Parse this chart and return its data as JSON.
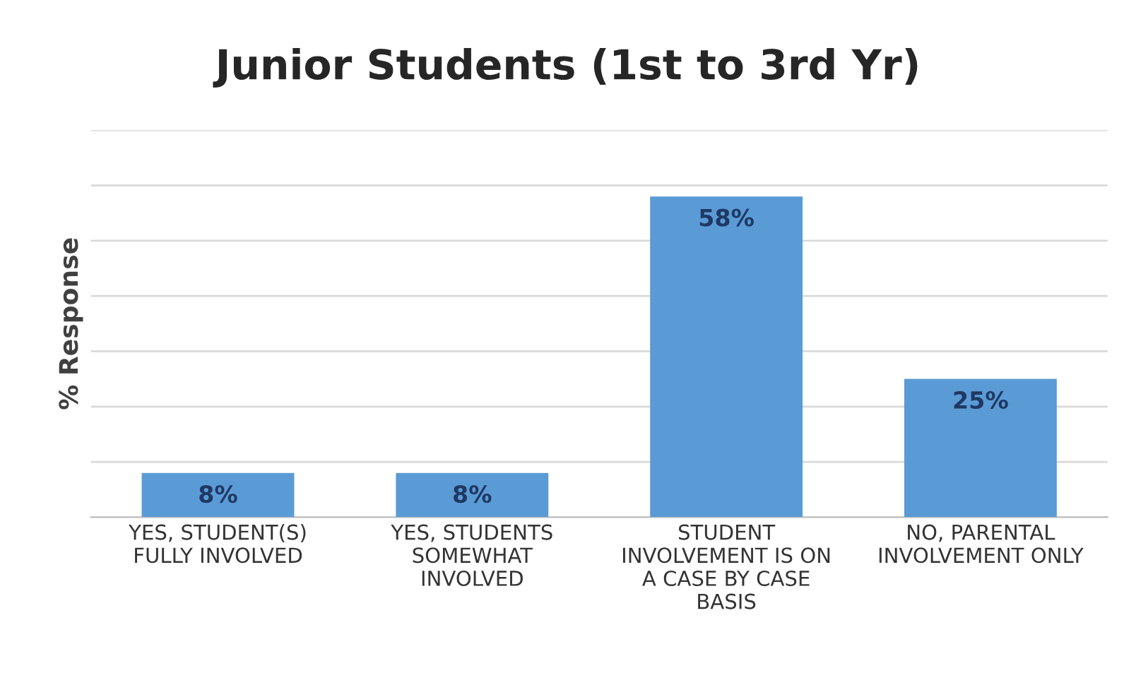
{
  "chart_data": {
    "type": "bar",
    "title": "Junior Students (1st to 3rd Yr)",
    "ylabel": "% Response",
    "categories": [
      "YES, STUDENT(S)\nFULLY INVOLVED",
      "YES, STUDENTS\nSOMEWHAT\nINVOLVED",
      "STUDENT\nINVOLVEMENT IS ON\nA CASE BY CASE\nBASIS",
      "NO, PARENTAL\nINVOLVEMENT ONLY"
    ],
    "values": [
      8,
      8,
      58,
      25
    ],
    "color": "#5b9bd5",
    "value_labels": [
      "8%",
      "8%",
      "58%",
      "25%"
    ],
    "ylim": [
      0,
      70
    ],
    "yticks": [
      {
        "value": 0,
        "label": null
      },
      {
        "value": 10,
        "label": null
      },
      {
        "value": 20,
        "label": null
      },
      {
        "value": 30,
        "label": null
      },
      {
        "value": 40,
        "label": null
      },
      {
        "value": 50,
        "label": null
      },
      {
        "value": 60,
        "label": null
      },
      {
        "value": 70,
        "label": null
      }
    ],
    "tick_labels": "x",
    "grid": "y",
    "legend": false
  }
}
